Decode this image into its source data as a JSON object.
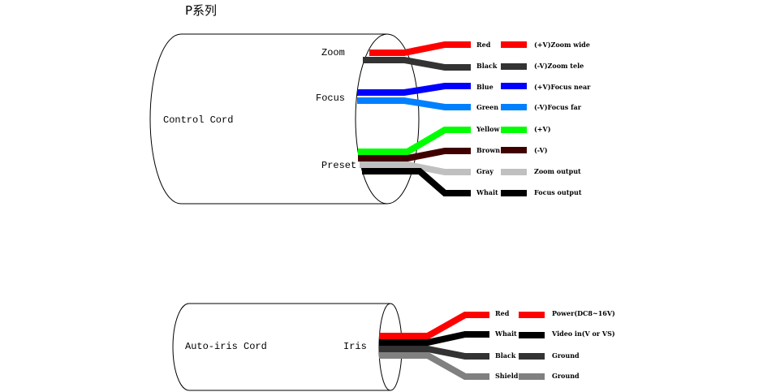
{
  "title": "P系列",
  "control": {
    "cord_label": "Control Cord",
    "group_labels": {
      "zoom": "Zoom",
      "focus": "Focus",
      "preset": "Preset"
    },
    "wires": [
      {
        "color": "#ff0000",
        "name": "Red",
        "desc": "(+V)Zoom wide"
      },
      {
        "color": "#333333",
        "name": "Black",
        "desc": "(-V)Zoom tele"
      },
      {
        "color": "#0000ff",
        "name": "Blue",
        "desc": "(+V)Focus near"
      },
      {
        "color": "#0080ff",
        "name": "Green",
        "desc": "(-V)Focus far"
      },
      {
        "color": "#00ff00",
        "name": "Yellow",
        "desc": "(+V)"
      },
      {
        "color": "#400000",
        "name": "Brown",
        "desc": "(-V)"
      },
      {
        "color": "#c0c0c0",
        "name": "Gray",
        "desc": "Zoom output"
      },
      {
        "color": "#000000",
        "name": "Whait",
        "desc": "Focus output"
      }
    ]
  },
  "iris": {
    "cord_label": "Auto-iris Cord",
    "group_label": "Iris",
    "wires": [
      {
        "color": "#ff0000",
        "name": "Red",
        "desc": "Power(DC8~16V)"
      },
      {
        "color": "#000000",
        "name": "Whait",
        "desc": "Video in(V or VS)"
      },
      {
        "color": "#333333",
        "name": "Black",
        "desc": "Ground"
      },
      {
        "color": "#808080",
        "name": "Shield",
        "desc": "Ground"
      }
    ]
  }
}
